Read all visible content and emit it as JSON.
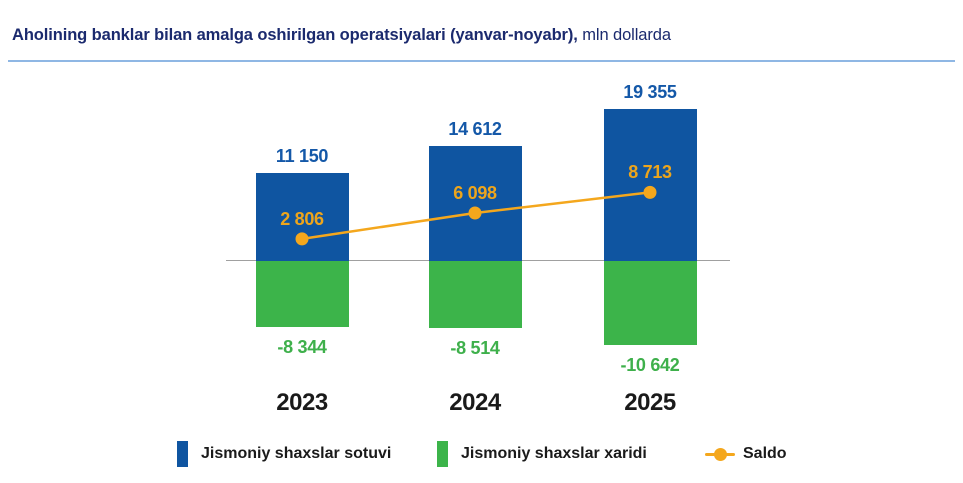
{
  "title": {
    "bold_part": "Aholining banklar bilan amalga oshirilgan operatsiyalari (yanvar-noyabr),",
    "regular_part": " mln dollarda"
  },
  "colors": {
    "title_navy": "#1B2A6E",
    "positive_bar_blue": "#0F55A1",
    "negative_bar_green": "#3CB44A",
    "saldo_yellow": "#F4A71D",
    "positive_label_blue": "#1458A8",
    "negative_label_green": "#3EB04B",
    "saldo_label_gold": "#EDA51C",
    "zero_line_gray": "#A0A0A0",
    "divider_light_blue": "#8FB7E4",
    "year_label_black": "#1A1A1A"
  },
  "chart_data": {
    "type": "bar",
    "title": "Aholining banklar bilan amalga oshirilgan operatsiyalari (yanvar-noyabr), mln dollarda",
    "unit": "mln dollarda",
    "categories": [
      "2023",
      "2024",
      "2025"
    ],
    "series": [
      {
        "name": "Jismoniy shaxslar sotuvi",
        "type": "bar",
        "color": "#0F55A1",
        "label_color": "#1458A8",
        "values": [
          11150,
          14612,
          19355
        ],
        "labels": [
          "11 150",
          "14 612",
          "19 355"
        ]
      },
      {
        "name": "Jismoniy shaxslar xaridi",
        "type": "bar",
        "color": "#3CB44A",
        "label_color": "#3EB04B",
        "values": [
          -8344,
          -8514,
          -10642
        ],
        "labels": [
          "-8 344",
          "-8 514",
          "-10 642"
        ]
      },
      {
        "name": "Saldo",
        "type": "line",
        "color": "#F4A71D",
        "label_color": "#EDA51C",
        "values": [
          2806,
          6098,
          8713
        ],
        "labels": [
          "2 806",
          "6 098",
          "8 713"
        ]
      }
    ],
    "ylim": [
      -10642,
      19355
    ],
    "grid": false,
    "legend_position": "bottom"
  },
  "legend": {
    "items": [
      {
        "label": "Jismoniy shaxslar sotuvi",
        "marker": "square",
        "color": "#0F55A1"
      },
      {
        "label": "Jismoniy shaxslar xaridi",
        "marker": "square",
        "color": "#3CB44A"
      },
      {
        "label": "Saldo",
        "marker": "line-dot",
        "color": "#F4A71D"
      }
    ]
  }
}
